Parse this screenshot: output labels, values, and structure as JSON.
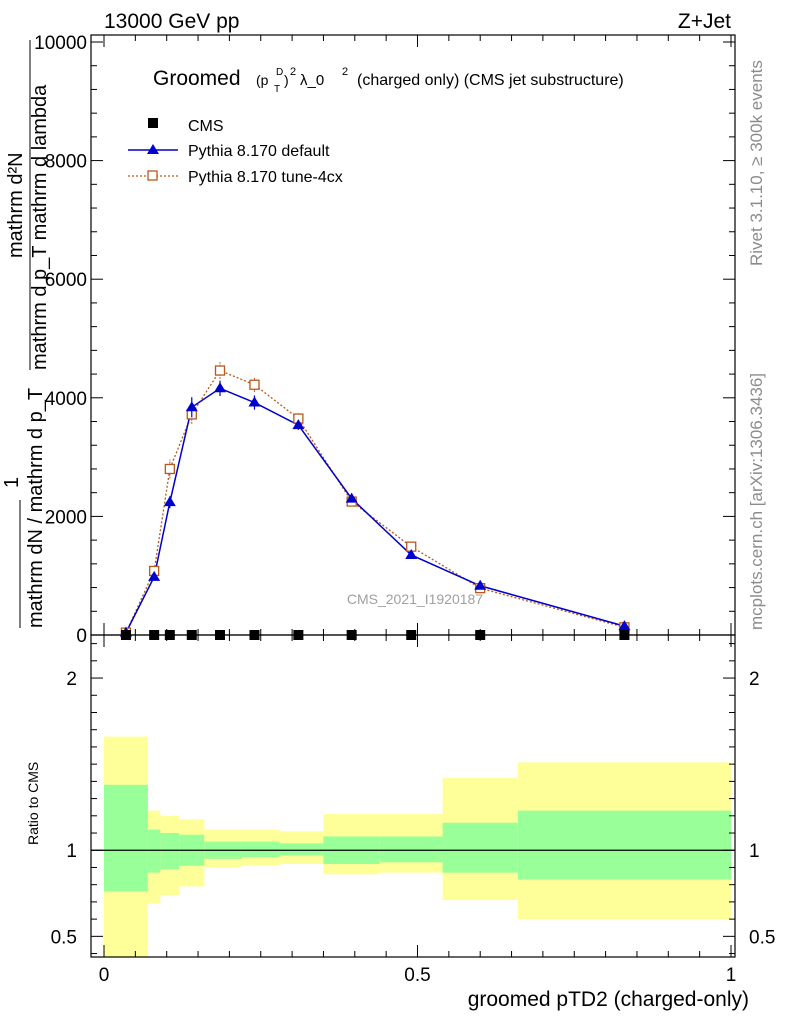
{
  "header": {
    "beam": "13000 GeV pp",
    "process": "Z+Jet"
  },
  "side_labels": {
    "rivet": "Rivet 3.1.10, ≥ 300k events",
    "mcplots": "mcplots.cern.ch [arXiv:1306.3436]"
  },
  "analysis_tag": "CMS_2021_I1920187",
  "colors": {
    "cms": "#000000",
    "default": "#0000cc",
    "tune": "#b8581d",
    "band_outer": "#ffff99",
    "band_inner": "#99ff99"
  },
  "chart_data": [
    {
      "type": "line",
      "panel": "main",
      "title": "Groomed (p_T^D)^2 λ_0^2  (charged only) (CMS jet substructure)",
      "title_parts": {
        "prefix": "Groomed",
        "sup_d": "D",
        "sub_t": "T",
        "sup_2": "2",
        "lambda": "λ_0",
        "suffix": "(charged only) (CMS jet substructure)"
      },
      "ylabel_top": "mathrm d²N",
      "ylabel_mid": "mathrm d p_T mathrm d lambda",
      "ylabel_frac_one": "1",
      "ylabel_bottom": "mathrm dN / mathrm d p_T",
      "xlim": [
        0,
        1
      ],
      "ylim": [
        0,
        10000
      ],
      "y_ticks": [
        0,
        2000,
        4000,
        6000,
        8000,
        10000
      ],
      "y_tick_labels": [
        "0",
        "2000",
        "4000",
        "6000",
        "8000",
        "10000"
      ],
      "legend": [
        {
          "name": "CMS",
          "marker": "square"
        },
        {
          "name": "Pythia 8.170 default",
          "marker": "triangle"
        },
        {
          "name": "Pythia 8.170 tune-4cx",
          "marker": "open-square"
        }
      ],
      "series": [
        {
          "name": "CMS",
          "x": [
            0.035,
            0.08,
            0.105,
            0.14,
            0.185,
            0.24,
            0.31,
            0.395,
            0.49,
            0.6,
            0.83
          ],
          "y": [
            0,
            0,
            0,
            0,
            0,
            0,
            0,
            0,
            0,
            0,
            0
          ]
        },
        {
          "name": "Pythia 8.170 default",
          "x": [
            0.035,
            0.08,
            0.105,
            0.14,
            0.185,
            0.24,
            0.31,
            0.395,
            0.49,
            0.6,
            0.83
          ],
          "y": [
            40,
            980,
            2240,
            3840,
            4160,
            3920,
            3540,
            2300,
            1350,
            830,
            150
          ],
          "err": [
            20,
            60,
            100,
            170,
            130,
            120,
            80,
            50,
            40,
            30,
            20
          ]
        },
        {
          "name": "Pythia 8.170 tune-4cx",
          "x": [
            0.035,
            0.08,
            0.105,
            0.14,
            0.185,
            0.24,
            0.31,
            0.395,
            0.49,
            0.6,
            0.83
          ],
          "y": [
            40,
            1080,
            2800,
            3720,
            4460,
            4220,
            3650,
            2250,
            1490,
            790,
            130
          ],
          "err": [
            20,
            80,
            160,
            160,
            140,
            120,
            90,
            60,
            40,
            30,
            20
          ]
        }
      ]
    },
    {
      "type": "area",
      "panel": "ratio",
      "ylabel": "Ratio to CMS",
      "xlabel": "groomed pTD2 (charged-only)",
      "xlim": [
        0,
        1
      ],
      "ylim": [
        0.38,
        2.25
      ],
      "y_ticks": [
        0.5,
        1,
        2
      ],
      "y_tick_labels": [
        "0.5",
        "1",
        "2"
      ],
      "x_ticks": [
        0,
        0.5,
        1
      ],
      "x_tick_labels": [
        "0",
        "0.5",
        "1"
      ],
      "reference": 1,
      "bins": [
        0,
        0.07,
        0.09,
        0.12,
        0.16,
        0.22,
        0.28,
        0.35,
        0.44,
        0.54,
        0.66,
        1
      ],
      "band_outer_lo": [
        0.38,
        0.69,
        0.74,
        0.79,
        0.9,
        0.91,
        0.92,
        0.86,
        0.87,
        0.71,
        0.6
      ],
      "band_outer_hi": [
        1.66,
        1.23,
        1.2,
        1.18,
        1.12,
        1.12,
        1.11,
        1.21,
        1.21,
        1.42,
        1.51
      ],
      "band_inner_lo": [
        0.76,
        0.87,
        0.89,
        0.91,
        0.95,
        0.96,
        0.97,
        0.92,
        0.93,
        0.87,
        0.83
      ],
      "band_inner_hi": [
        1.38,
        1.12,
        1.1,
        1.09,
        1.05,
        1.05,
        1.04,
        1.08,
        1.08,
        1.16,
        1.23
      ]
    }
  ]
}
